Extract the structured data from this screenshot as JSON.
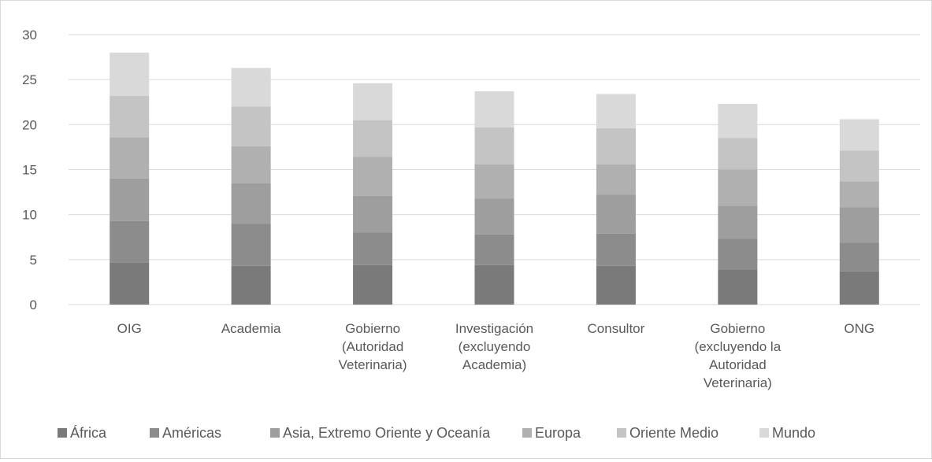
{
  "chart_data": {
    "type": "bar",
    "stacked": true,
    "title": "",
    "xlabel": "",
    "ylabel": "",
    "ylim": [
      0,
      30
    ],
    "yticks": [
      0,
      5,
      10,
      15,
      20,
      25,
      30
    ],
    "grid": true,
    "legend_position": "bottom",
    "categories": [
      [
        "OIG"
      ],
      [
        "Academia"
      ],
      [
        "Gobierno",
        "(Autoridad",
        "Veterinaria)"
      ],
      [
        "Investigación",
        "(excluyendo",
        "Academia)"
      ],
      [
        "Consultor"
      ],
      [
        "Gobierno",
        "(excluyendo la",
        "Autoridad",
        "Veterinaria)"
      ],
      [
        "ONG"
      ]
    ],
    "series": [
      {
        "name": "África",
        "color": "#7a7a7a",
        "values": [
          4.7,
          4.3,
          4.4,
          4.4,
          4.3,
          3.9,
          3.7
        ]
      },
      {
        "name": "Américas",
        "color": "#8c8c8c",
        "values": [
          4.6,
          4.7,
          3.6,
          3.4,
          3.6,
          3.4,
          3.2
        ]
      },
      {
        "name": "Asia, Extremo Oriente y Oceanía",
        "color": "#9e9e9e",
        "values": [
          4.7,
          4.5,
          4.1,
          4.0,
          4.3,
          3.7,
          3.9
        ]
      },
      {
        "name": "Europa",
        "color": "#b0b0b0",
        "values": [
          4.6,
          4.1,
          4.3,
          3.8,
          3.4,
          4.0,
          2.9
        ]
      },
      {
        "name": "Oriente Medio",
        "color": "#c4c4c4",
        "values": [
          4.6,
          4.4,
          4.1,
          4.1,
          4.0,
          3.5,
          3.4
        ]
      },
      {
        "name": "Mundo",
        "color": "#d9d9d9",
        "values": [
          4.8,
          4.3,
          4.1,
          4.0,
          3.8,
          3.8,
          3.5
        ]
      }
    ]
  }
}
